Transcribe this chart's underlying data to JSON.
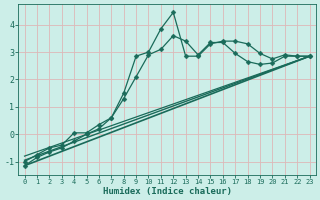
{
  "xlabel": "Humidex (Indice chaleur)",
  "background_color": "#cceee8",
  "grid_color": "#ddb8b8",
  "line_color": "#1a6b5a",
  "xlim": [
    -0.5,
    23.5
  ],
  "ylim": [
    -1.5,
    4.75
  ],
  "yticks": [
    -1,
    0,
    1,
    2,
    3,
    4
  ],
  "xticks": [
    0,
    1,
    2,
    3,
    4,
    5,
    6,
    7,
    8,
    9,
    10,
    11,
    12,
    13,
    14,
    15,
    16,
    17,
    18,
    19,
    20,
    21,
    22,
    23
  ],
  "series": [
    {
      "x": [
        0,
        1,
        2,
        3,
        4,
        5,
        6,
        7,
        8,
        9,
        10,
        11,
        12,
        13,
        14,
        15,
        16,
        17,
        18,
        19,
        20,
        21,
        22,
        23
      ],
      "y": [
        -1.15,
        -0.85,
        -0.65,
        -0.5,
        -0.25,
        0.0,
        0.2,
        0.6,
        1.5,
        2.85,
        3.0,
        3.85,
        4.45,
        2.85,
        2.85,
        3.3,
        3.4,
        3.4,
        3.3,
        2.95,
        2.75,
        2.9,
        2.85,
        2.85
      ],
      "marker": "D",
      "markersize": 2.5,
      "linewidth": 0.9,
      "linestyle": "-"
    },
    {
      "x": [
        0,
        1,
        2,
        3,
        4,
        5,
        6,
        7,
        8,
        9,
        10,
        11,
        12,
        13,
        14,
        15,
        16,
        17,
        18,
        19,
        20,
        21,
        22,
        23
      ],
      "y": [
        -1.0,
        -0.75,
        -0.5,
        -0.4,
        0.05,
        0.05,
        0.35,
        0.6,
        1.3,
        2.1,
        2.9,
        3.1,
        3.6,
        3.4,
        2.9,
        3.35,
        3.35,
        2.95,
        2.65,
        2.55,
        2.6,
        2.85,
        2.85,
        2.85
      ],
      "marker": "D",
      "markersize": 2.5,
      "linewidth": 0.9,
      "linestyle": "-"
    },
    {
      "x": [
        0,
        23
      ],
      "y": [
        -1.15,
        2.85
      ],
      "marker": null,
      "markersize": 0,
      "linewidth": 1.2,
      "linestyle": "-"
    },
    {
      "x": [
        0,
        23
      ],
      "y": [
        -0.95,
        2.85
      ],
      "marker": null,
      "markersize": 0,
      "linewidth": 1.0,
      "linestyle": "-"
    },
    {
      "x": [
        0,
        23
      ],
      "y": [
        -0.8,
        2.85
      ],
      "marker": null,
      "markersize": 0,
      "linewidth": 0.9,
      "linestyle": "-"
    }
  ]
}
